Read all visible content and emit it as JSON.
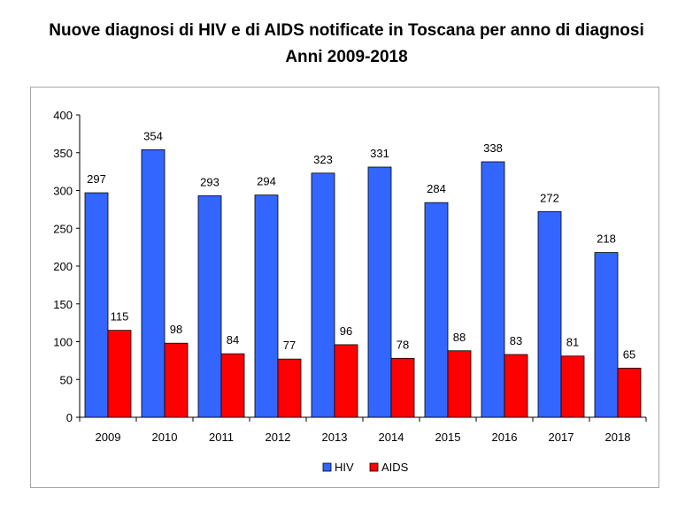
{
  "chart_data": {
    "type": "bar",
    "title": "Nuove diagnosi di HIV e di AIDS notificate in Toscana per anno di diagnosi",
    "subtitle": "Anni 2009-2018",
    "xlabel": "",
    "ylabel": "",
    "categories": [
      "2009",
      "2010",
      "2011",
      "2012",
      "2013",
      "2014",
      "2015",
      "2016",
      "2017",
      "2018"
    ],
    "series": [
      {
        "name": "HIV",
        "color": "#3366ff",
        "values": [
          297,
          354,
          293,
          294,
          323,
          331,
          284,
          338,
          272,
          218
        ]
      },
      {
        "name": "AIDS",
        "color": "#ff0000",
        "values": [
          115,
          98,
          84,
          77,
          96,
          78,
          88,
          83,
          81,
          65
        ]
      }
    ],
    "ylim": [
      0,
      400
    ],
    "yticks": [
      "0",
      "50",
      "100",
      "150",
      "200",
      "250",
      "300",
      "350",
      "400"
    ],
    "grid": false,
    "legend_position": "bottom",
    "data_labels": true
  }
}
